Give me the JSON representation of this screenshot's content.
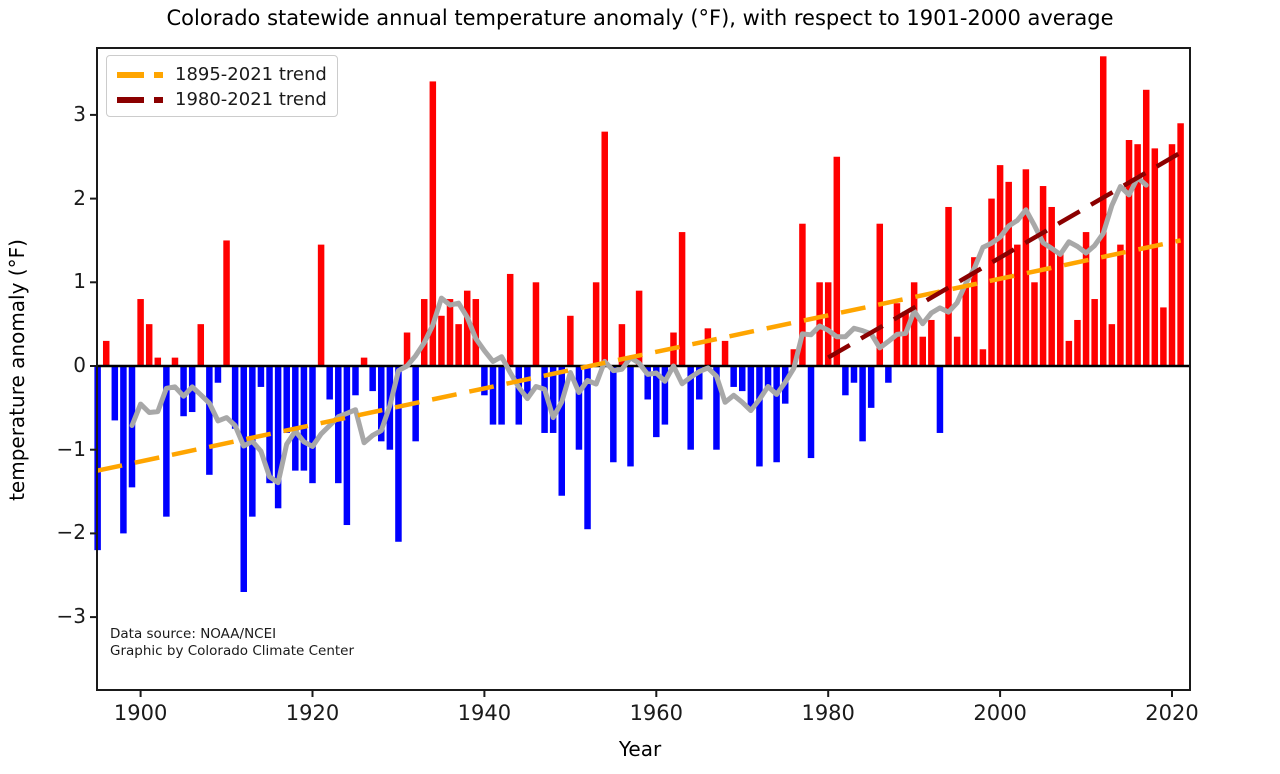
{
  "title": "Colorado statewide annual temperature anomaly (°F), with respect to 1901-2000 average",
  "legend": {
    "items": [
      {
        "label": "1895-2021 trend",
        "color": "#ffa500"
      },
      {
        "label": "1980-2021 trend",
        "color": "#8b0000"
      }
    ]
  },
  "annotations": {
    "line1": "Data source: NOAA/NCEI",
    "line2": "Graphic by Colorado Climate Center"
  },
  "chart_data": {
    "type": "bar",
    "title": "Colorado statewide annual temperature anomaly (°F), with respect to 1901-2000 average",
    "xlabel": "Year",
    "ylabel": "temperature anomaly (°F)",
    "x_start_year": 1895,
    "x_end_year": 2021,
    "values": [
      -2.2,
      0.3,
      -0.65,
      -2.0,
      -1.45,
      0.8,
      0.5,
      0.1,
      -1.8,
      0.1,
      -0.6,
      -0.55,
      0.5,
      -1.3,
      -0.2,
      1.5,
      -0.75,
      -2.7,
      -1.8,
      -0.25,
      -1.4,
      -1.7,
      -0.8,
      -1.25,
      -1.25,
      -1.4,
      1.45,
      -0.4,
      -1.4,
      -1.9,
      -0.35,
      0.1,
      -0.3,
      -0.9,
      -1.0,
      -2.1,
      0.4,
      -0.9,
      0.8,
      3.4,
      0.6,
      0.8,
      0.5,
      0.9,
      0.8,
      -0.35,
      -0.7,
      -0.7,
      1.1,
      -0.7,
      -0.35,
      1.0,
      -0.8,
      -0.8,
      -1.55,
      0.6,
      -1.0,
      -1.95,
      1.0,
      2.8,
      -1.15,
      0.5,
      -1.2,
      0.9,
      -0.4,
      -0.85,
      -0.7,
      0.4,
      1.6,
      -1.0,
      -0.4,
      0.45,
      -1.0,
      0.3,
      -0.25,
      -0.3,
      -0.5,
      -1.2,
      -0.25,
      -1.15,
      -0.45,
      0.2,
      1.7,
      -1.1,
      1.0,
      1.0,
      2.5,
      -0.35,
      -0.2,
      -0.9,
      -0.5,
      1.7,
      -0.2,
      0.75,
      0.65,
      1.0,
      0.35,
      0.55,
      -0.8,
      1.9,
      0.35,
      0.95,
      1.3,
      0.2,
      2.0,
      2.4,
      2.2,
      1.45,
      2.35,
      1.0,
      2.15,
      1.9,
      1.35,
      0.3,
      0.55,
      1.6,
      0.8,
      3.7,
      0.5,
      1.45,
      2.7,
      2.65,
      3.3,
      2.6,
      0.7,
      2.65,
      2.9
    ],
    "ylim": [
      -3.87,
      3.8
    ],
    "xlim": [
      1894.9,
      2022.1
    ],
    "x_ticks": [
      1900,
      1920,
      1940,
      1960,
      1980,
      2000,
      2020
    ],
    "y_ticks": [
      -3,
      -2,
      -1,
      0,
      1,
      2,
      3
    ],
    "y_tick_labels": [
      "−3",
      "−2",
      "−1",
      "0",
      "1",
      "2",
      "3"
    ],
    "grid": false,
    "legend_position": "upper left",
    "bar_color_positive": "#ff0000",
    "bar_color_negative": "#0000ff",
    "zero_line_color": "#000000",
    "frame_color": "#1a1a1a",
    "smoothed_line": {
      "name": "9-year running mean",
      "color": "#a8a8a8",
      "window": 9,
      "width": 5
    },
    "trend_lines": [
      {
        "name": "1895-2021 trend",
        "color": "#ffa500",
        "start_year": 1895,
        "end_year": 2021,
        "start_value": -1.25,
        "end_value": 1.5
      },
      {
        "name": "1980-2021 trend",
        "color": "#8b0000",
        "start_year": 1980,
        "end_year": 2021,
        "start_value": 0.1,
        "end_value": 2.55
      }
    ],
    "annotations": [
      "Data source: NOAA/NCEI",
      "Graphic by Colorado Climate Center"
    ]
  }
}
